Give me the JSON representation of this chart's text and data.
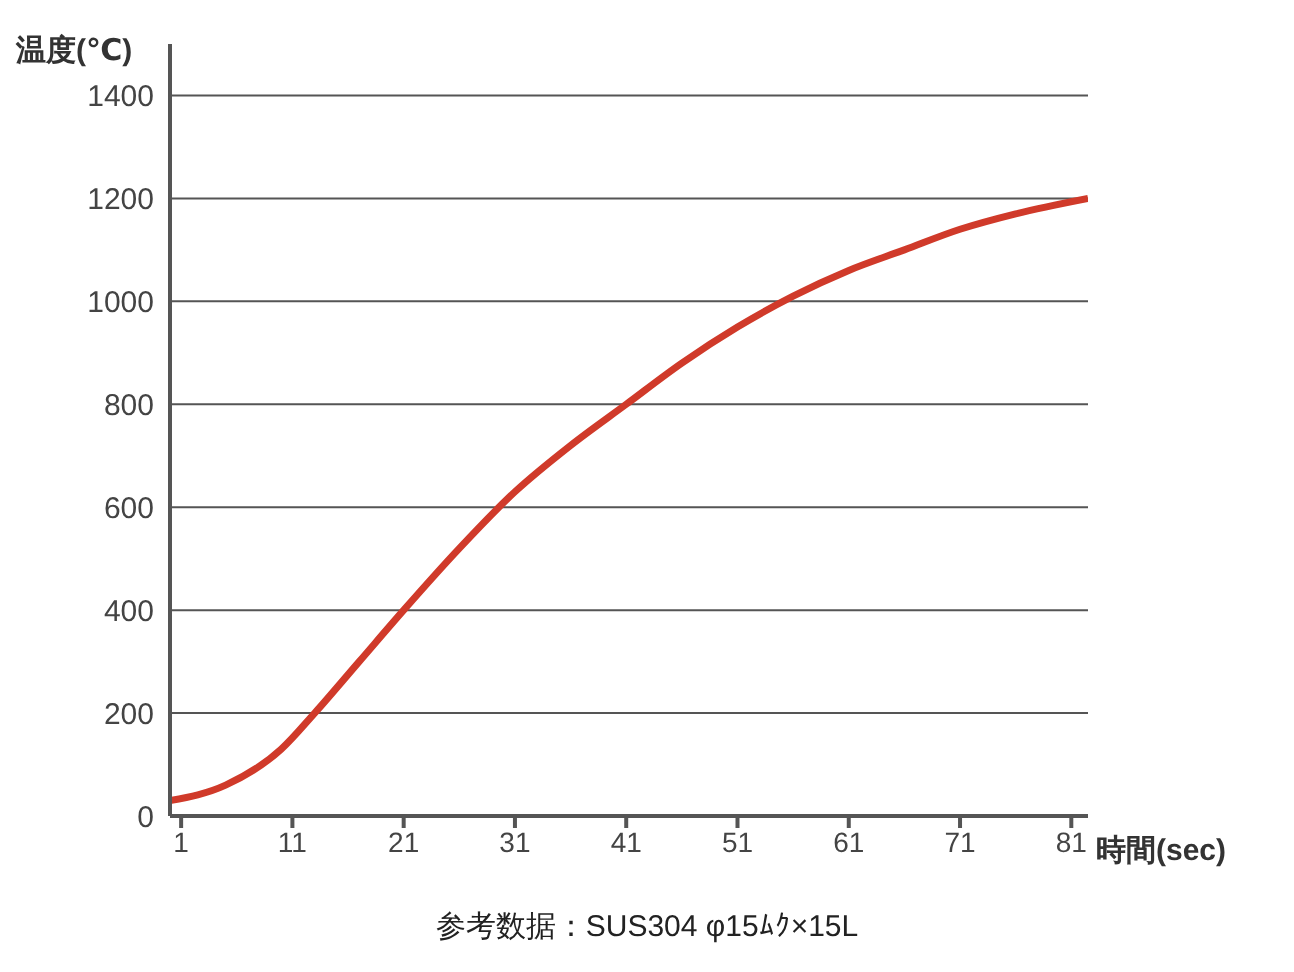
{
  "chart_data": {
    "type": "line",
    "xlabel": "時間(sec)",
    "ylabel": "温度(℃)",
    "annotations": [
      "参考数据：SUS304 φ15ﾑｸ×15L"
    ],
    "x": [
      0,
      5,
      10,
      13,
      17,
      21,
      26,
      31,
      36,
      41,
      46,
      51,
      56,
      61,
      66,
      71,
      76,
      82.5
    ],
    "series": [
      {
        "color": "#d03a2a",
        "values": [
          30,
          60,
          130,
          200,
          300,
          400,
          520,
          630,
          720,
          800,
          880,
          950,
          1010,
          1060,
          1100,
          1140,
          1170,
          1200
        ]
      }
    ],
    "xlim": [
      0,
      82.5
    ],
    "xticks": [
      1,
      11,
      21,
      31,
      41,
      51,
      61,
      71,
      81
    ],
    "ylim": [
      0,
      1500
    ],
    "yticks": [
      0,
      200,
      400,
      600,
      800,
      1000,
      1200,
      1400
    ],
    "grid": "y",
    "marker": "none",
    "line_style": "solid"
  }
}
